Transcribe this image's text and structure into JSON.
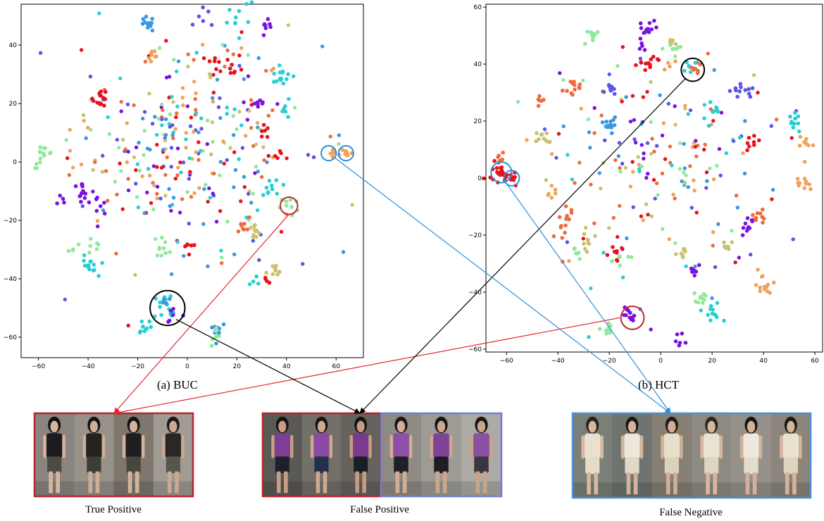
{
  "chart_data": [
    {
      "type": "scatter",
      "caption": "(a) BUC",
      "xlim": [
        -67,
        71
      ],
      "ylim": [
        -67,
        54
      ],
      "xticks": [
        -60,
        -40,
        -20,
        0,
        20,
        40,
        60
      ],
      "yticks": [
        -60,
        -40,
        -20,
        0,
        20,
        40
      ],
      "clusters": [
        {
          "x": -16,
          "y": 47,
          "n": 12,
          "s": 1.3,
          "c": 3
        },
        {
          "x": 8,
          "y": 49,
          "n": 6,
          "s": 2.2,
          "c": 8
        },
        {
          "x": 20,
          "y": 49,
          "n": 10,
          "s": 4,
          "c": 4
        },
        {
          "x": 32,
          "y": 45,
          "n": 8,
          "s": 1.6,
          "c": 1
        },
        {
          "x": 39,
          "y": 32,
          "n": 6,
          "s": 1.8,
          "c": 4
        },
        {
          "x": 38,
          "y": 28,
          "n": 8,
          "s": 2,
          "c": 4
        },
        {
          "x": -13,
          "y": 37,
          "n": 8,
          "s": 1.5,
          "c": 6
        },
        {
          "x": 11,
          "y": 34,
          "n": 6,
          "s": 1.5,
          "c": 0
        },
        {
          "x": 19,
          "y": 33,
          "n": 8,
          "s": 1.8,
          "c": 0
        },
        {
          "x": -35,
          "y": 22,
          "n": 14,
          "s": 1.5,
          "c": 0
        },
        {
          "x": 40,
          "y": 18,
          "n": 6,
          "s": 1.5,
          "c": 4
        },
        {
          "x": -58,
          "y": 2,
          "n": 14,
          "s": 2,
          "c": 5
        },
        {
          "x": -43,
          "y": -10,
          "n": 12,
          "s": 1.5,
          "c": 1
        },
        {
          "x": -35,
          "y": -14,
          "n": 8,
          "s": 2,
          "c": 1
        },
        {
          "x": -40,
          "y": -36,
          "n": 14,
          "s": 1.8,
          "c": 4
        },
        {
          "x": -38,
          "y": -29,
          "n": 6,
          "s": 1.8,
          "c": 5
        },
        {
          "x": -10,
          "y": -29,
          "n": 10,
          "s": 1.8,
          "c": 5
        },
        {
          "x": 0,
          "y": -29,
          "n": 6,
          "s": 1.2,
          "c": 0
        },
        {
          "x": 22,
          "y": -22,
          "n": 8,
          "s": 1.5,
          "c": 2
        },
        {
          "x": 27,
          "y": -24,
          "n": 10,
          "s": 1.5,
          "c": 7
        },
        {
          "x": 35,
          "y": -38,
          "n": 8,
          "s": 1.5,
          "c": 7
        },
        {
          "x": 32,
          "y": -41,
          "n": 4,
          "s": 1,
          "c": 0
        },
        {
          "x": 41,
          "y": -15,
          "n": 10,
          "s": 1.8,
          "c": 5
        },
        {
          "x": 59,
          "y": 3,
          "n": 10,
          "s": 1.3,
          "c": 6
        },
        {
          "x": 64,
          "y": 3,
          "n": 8,
          "s": 1.3,
          "c": 6
        },
        {
          "x": -8,
          "y": -50,
          "n": 14,
          "s": 3,
          "c": 4
        },
        {
          "x": -7,
          "y": -51,
          "n": 6,
          "s": 2.5,
          "c": 1
        },
        {
          "x": -8,
          "y": -49,
          "n": 4,
          "s": 2.5,
          "c": 3
        },
        {
          "x": -17,
          "y": -56,
          "n": 10,
          "s": 1.5,
          "c": 4
        },
        {
          "x": 12,
          "y": -57,
          "n": 10,
          "s": 1.8,
          "c": 3
        },
        {
          "x": 12,
          "y": -60,
          "n": 6,
          "s": 1.8,
          "c": 5
        },
        {
          "x": 28,
          "y": -42,
          "n": 4,
          "s": 1.5,
          "c": 4
        },
        {
          "x": 28,
          "y": 20,
          "n": 8,
          "s": 1.8,
          "c": 1
        },
        {
          "x": 30,
          "y": 10,
          "n": 6,
          "s": 1.5,
          "c": 0
        },
        {
          "x": 36,
          "y": 3,
          "n": 5,
          "s": 1.5,
          "c": 0
        },
        {
          "x": 34,
          "y": -8,
          "n": 10,
          "s": 2,
          "c": 4
        },
        {
          "x": -50,
          "y": -13,
          "n": 4,
          "s": 1,
          "c": 1
        },
        {
          "x": -46,
          "y": -29,
          "n": 4,
          "s": 1,
          "c": 5
        }
      ],
      "scatter_regions": [
        {
          "x": 0,
          "y": 5,
          "rx": 42,
          "ry": 30,
          "n": 320
        }
      ],
      "circles": [
        {
          "x": -8,
          "y": -50,
          "r": 7,
          "color": "#000000"
        },
        {
          "x": 41,
          "y": -15,
          "r": 3.5,
          "color": "#c8242f"
        },
        {
          "x": 57,
          "y": 3,
          "r": 3,
          "color": "#2e8fd6"
        },
        {
          "x": 64,
          "y": 3,
          "r": 3,
          "color": "#2e8fd6"
        }
      ]
    },
    {
      "type": "scatter",
      "caption": "(b) HCT",
      "xlim": [
        -68,
        63
      ],
      "ylim": [
        -61,
        61
      ],
      "xticks": [
        -60,
        -40,
        -20,
        0,
        20,
        40,
        60
      ],
      "yticks": [
        -60,
        -40,
        -20,
        0,
        20,
        40,
        60
      ],
      "clusters": [
        {
          "x": -27,
          "y": 50,
          "n": 10,
          "s": 1.5,
          "c": 5
        },
        {
          "x": -5,
          "y": 52,
          "n": 14,
          "s": 1.5,
          "c": 1
        },
        {
          "x": -8,
          "y": 45,
          "n": 6,
          "s": 1.5,
          "c": 1
        },
        {
          "x": 5,
          "y": 45,
          "n": 8,
          "s": 1.8,
          "c": 5
        },
        {
          "x": 5,
          "y": 48,
          "n": 5,
          "s": 1.5,
          "c": 7
        },
        {
          "x": -4,
          "y": 41,
          "n": 12,
          "s": 1.8,
          "c": 0
        },
        {
          "x": 3,
          "y": 40,
          "n": 4,
          "s": 1.2,
          "c": 6
        },
        {
          "x": 13,
          "y": 38,
          "n": 8,
          "s": 1.5,
          "c": 2
        },
        {
          "x": 11,
          "y": 38,
          "n": 5,
          "s": 1.5,
          "c": 4
        },
        {
          "x": -34,
          "y": 32,
          "n": 12,
          "s": 1.6,
          "c": 2
        },
        {
          "x": -47,
          "y": 28,
          "n": 6,
          "s": 1.2,
          "c": 2
        },
        {
          "x": -20,
          "y": 32,
          "n": 8,
          "s": 1.5,
          "c": 8
        },
        {
          "x": 32,
          "y": 31,
          "n": 12,
          "s": 1.8,
          "c": 8
        },
        {
          "x": -20,
          "y": 20,
          "n": 12,
          "s": 1.5,
          "c": 3
        },
        {
          "x": 20,
          "y": 24,
          "n": 8,
          "s": 1.5,
          "c": 4
        },
        {
          "x": 52,
          "y": 19,
          "n": 10,
          "s": 1.5,
          "c": 4
        },
        {
          "x": 37,
          "y": 13,
          "n": 8,
          "s": 1.5,
          "c": 0
        },
        {
          "x": 56,
          "y": 12,
          "n": 8,
          "s": 1.5,
          "c": 6
        },
        {
          "x": -46,
          "y": 14,
          "n": 10,
          "s": 1.5,
          "c": 7
        },
        {
          "x": -63,
          "y": 2,
          "n": 18,
          "s": 2,
          "c": 0
        },
        {
          "x": -63,
          "y": 7,
          "n": 6,
          "s": 1.5,
          "c": 2
        },
        {
          "x": -58,
          "y": 1,
          "n": 10,
          "s": 1.5,
          "c": 0
        },
        {
          "x": -43,
          "y": -5,
          "n": 6,
          "s": 1.5,
          "c": 6
        },
        {
          "x": -36,
          "y": -14,
          "n": 8,
          "s": 1.5,
          "c": 2
        },
        {
          "x": -38,
          "y": -19,
          "n": 6,
          "s": 1.5,
          "c": 2
        },
        {
          "x": 38,
          "y": -14,
          "n": 10,
          "s": 1.5,
          "c": 2
        },
        {
          "x": 34,
          "y": -17,
          "n": 10,
          "s": 1.5,
          "c": 1
        },
        {
          "x": 40,
          "y": -37,
          "n": 14,
          "s": 1.8,
          "c": 6
        },
        {
          "x": 15,
          "y": -42,
          "n": 10,
          "s": 1.8,
          "c": 5
        },
        {
          "x": 20,
          "y": -48,
          "n": 12,
          "s": 1.8,
          "c": 4
        },
        {
          "x": -12,
          "y": -48,
          "n": 14,
          "s": 1.6,
          "c": 1
        },
        {
          "x": -20,
          "y": -53,
          "n": 8,
          "s": 1.5,
          "c": 5
        },
        {
          "x": 8,
          "y": -57,
          "n": 6,
          "s": 1.5,
          "c": 1
        },
        {
          "x": 54,
          "y": -2,
          "n": 10,
          "s": 1.6,
          "c": 6
        },
        {
          "x": -17,
          "y": -25,
          "n": 8,
          "s": 1.5,
          "c": 0
        },
        {
          "x": -29,
          "y": -22,
          "n": 8,
          "s": 1.5,
          "c": 7
        },
        {
          "x": -33,
          "y": -26,
          "n": 6,
          "s": 1.5,
          "c": 5
        },
        {
          "x": -17,
          "y": -29,
          "n": 6,
          "s": 1.5,
          "c": 5
        },
        {
          "x": 8,
          "y": -26,
          "n": 8,
          "s": 1.5,
          "c": 7
        },
        {
          "x": 25,
          "y": -25,
          "n": 6,
          "s": 1.5,
          "c": 7
        },
        {
          "x": 13,
          "y": -32,
          "n": 8,
          "s": 1.5,
          "c": 1
        }
      ],
      "scatter_regions": [
        {
          "x": 0,
          "y": 5,
          "rx": 45,
          "ry": 30,
          "n": 190
        }
      ],
      "circles": [
        {
          "x": 12.5,
          "y": 38,
          "r": 4.5,
          "color": "#000000"
        },
        {
          "x": -62,
          "y": 2,
          "r": 4,
          "color": "#2e8fd6"
        },
        {
          "x": -58,
          "y": 0,
          "r": 3,
          "color": "#2e8fd6"
        },
        {
          "x": -11,
          "y": -49,
          "r": 4.5,
          "color": "#c8242f"
        }
      ]
    }
  ],
  "crops": [
    {
      "caption": "True Positive",
      "border": "#b5252c",
      "people": [
        {
          "shirt": "#1d1c20",
          "bottom": "#4b4a44",
          "skin": "#d7b49e",
          "hair": "#141212",
          "bg": "#8a8580"
        },
        {
          "shirt": "#23221f",
          "bottom": "#3c3d35",
          "skin": "#cfae96",
          "hair": "#161412",
          "bg": "#98928b"
        },
        {
          "shirt": "#1e1d1f",
          "bottom": "#48463f",
          "skin": "#d4b39b",
          "hair": "#151413",
          "bg": "#7d776e"
        },
        {
          "shirt": "#2a2826",
          "bottom": "#57564d",
          "skin": "#cba991",
          "hair": "#1a1815",
          "bg": "#a09b93"
        }
      ]
    },
    {
      "caption": "False Positive",
      "border": "#b5252c",
      "people": [
        {
          "shirt": "#7d3f93",
          "bottom": "#1e1f2c",
          "skin": "#c99f84",
          "hair": "#161414",
          "bg": "#5b5956"
        },
        {
          "shirt": "#8a4aa2",
          "bottom": "#22304b",
          "skin": "#d1a88c",
          "hair": "#171515",
          "bg": "#73706a"
        },
        {
          "shirt": "#7a3b8f",
          "bottom": "#1c1e27",
          "skin": "#c59c82",
          "hair": "#151313",
          "bg": "#66625e"
        }
      ]
    },
    {
      "caption": "",
      "border": "#6f7fd6",
      "people": [
        {
          "shirt": "#8e4fa8",
          "bottom": "#202027",
          "skin": "#d5ad92",
          "hair": "#181616",
          "bg": "#8d8b84"
        },
        {
          "shirt": "#7f4497",
          "bottom": "#1d1d22",
          "skin": "#cda68b",
          "hair": "#171515",
          "bg": "#9d9b94"
        },
        {
          "shirt": "#8950a3",
          "bottom": "#3a3640",
          "skin": "#caa488",
          "hair": "#191717",
          "bg": "#acaaa4"
        }
      ]
    },
    {
      "caption": "False Negative",
      "border": "#4a8fd8",
      "people": [
        {
          "shirt": "#e8e1cf",
          "bottom": "#e4dcc6",
          "skin": "#d9b79e",
          "hair": "#2a221c",
          "bg": "#7a7f78"
        },
        {
          "shirt": "#ece7d8",
          "bottom": "#e0d8c4",
          "skin": "#d5b39a",
          "hair": "#1c1815",
          "bg": "#6f7470"
        },
        {
          "shirt": "#e6dfcc",
          "bottom": "#dbd2bc",
          "skin": "#d1ae95",
          "hair": "#221c18",
          "bg": "#857f74"
        },
        {
          "shirt": "#eae3d2",
          "bottom": "#ddd5c0",
          "skin": "#d8b69c",
          "hair": "#2e2620",
          "bg": "#8e8a82"
        },
        {
          "shirt": "#edeadd",
          "bottom": "#e3dccb",
          "skin": "#d3b199",
          "hair": "#161311",
          "bg": "#95918a"
        },
        {
          "shirt": "#e9e2ce",
          "bottom": "#ddd4bd",
          "skin": "#d6b49a",
          "hair": "#1d1915",
          "bg": "#8b857c"
        }
      ]
    }
  ],
  "palette": [
    "#e8121c",
    "#7a12e0",
    "#ee6a3f",
    "#3a97e4",
    "#27cfd2",
    "#8fe99a",
    "#f0a25a",
    "#c9c16e",
    "#5a55e6"
  ],
  "arrow_colors": {
    "red": "#e8242c",
    "black": "#000000",
    "blue": "#2e8fd6"
  }
}
